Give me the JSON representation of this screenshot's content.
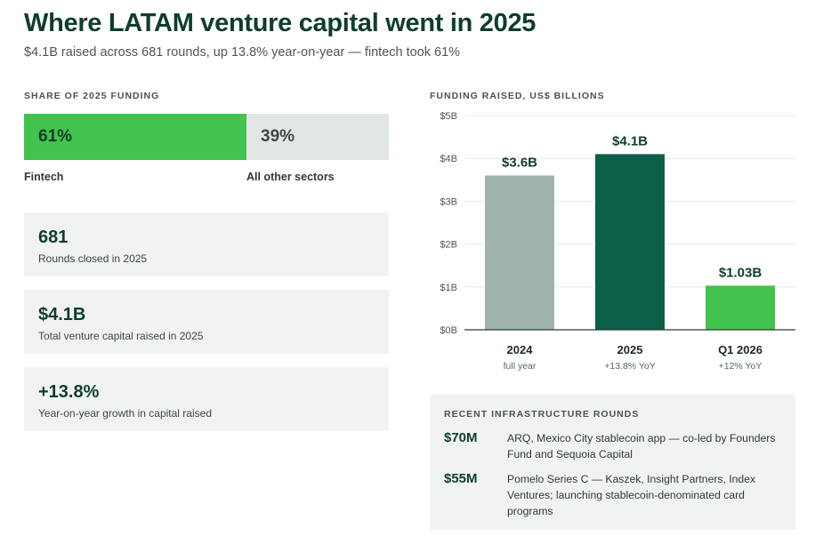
{
  "header": {
    "title": "Where LATAM venture capital went in 2025",
    "subtitle": "$4.1B raised across 681 rounds, up 13.8% year-on-year — fintech took 61%"
  },
  "share": {
    "label": "SHARE OF 2025 FUNDING",
    "segments": [
      {
        "value_text": "61%",
        "fraction": 0.61,
        "label": "Fintech",
        "color": "#43c24e"
      },
      {
        "value_text": "39%",
        "fraction": 0.39,
        "label": "All other sectors",
        "color": "#e3e7e4"
      }
    ]
  },
  "stats": [
    {
      "value": "681",
      "desc": "Rounds closed in 2025"
    },
    {
      "value": "$4.1B",
      "desc": "Total venture capital raised in 2025"
    },
    {
      "value": "+13.8%",
      "desc": "Year-on-year growth in capital raised"
    }
  ],
  "chart_data": {
    "type": "bar",
    "title": "FUNDING RAISED, US$ BILLIONS",
    "categories": [
      "2024",
      "2025",
      "Q1 2026"
    ],
    "sublabels": [
      "full year",
      "+13.8% YoY",
      "+12% YoY"
    ],
    "values": [
      3.6,
      4.1,
      1.03
    ],
    "data_labels": [
      "$3.6B",
      "$4.1B",
      "$1.03B"
    ],
    "colors": [
      "#9fb3aa",
      "#0c5f48",
      "#43c24e"
    ],
    "ylim": [
      0,
      5
    ],
    "yticks": [
      0,
      1,
      2,
      3,
      4,
      5
    ],
    "ytick_labels": [
      "$0B",
      "$1B",
      "$2B",
      "$3B",
      "$4B",
      "$5B"
    ],
    "grid": true
  },
  "infra": {
    "title": "RECENT INFRASTRUCTURE ROUNDS",
    "rounds": [
      {
        "amount": "$70M",
        "text": "ARQ, Mexico City stablecoin app — co-led by Founders Fund and Sequoia Capital"
      },
      {
        "amount": "$55M",
        "text": "Pomelo Series C — Kaszek, Insight Partners, Index Ventures; launching stablecoin-denominated card programs"
      }
    ]
  }
}
